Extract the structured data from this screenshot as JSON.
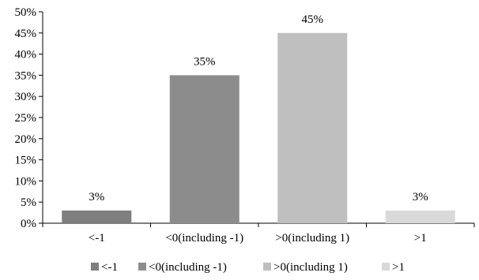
{
  "chart_data": {
    "type": "bar",
    "categories": [
      "<-1",
      "<0(including -1)",
      ">0(including 1)",
      ">1"
    ],
    "values": [
      3,
      35,
      45,
      3
    ],
    "value_labels": [
      "3%",
      "35%",
      "45%",
      "3%"
    ],
    "colors": [
      "#7f7f7f",
      "#8c8c8c",
      "#bfbfbf",
      "#d9d9d9"
    ],
    "ylim": [
      0,
      50
    ],
    "yticks": [
      0,
      5,
      10,
      15,
      20,
      25,
      30,
      35,
      40,
      45,
      50
    ],
    "ytick_labels": [
      "0%",
      "5%",
      "10%",
      "15%",
      "20%",
      "25%",
      "30%",
      "35%",
      "40%",
      "45%",
      "50%"
    ],
    "title": "",
    "xlabel": "",
    "ylabel": "",
    "grid": false,
    "legend": {
      "placement": "bottom",
      "entries": [
        "<-1",
        "<0(including -1)",
        ">0(including 1)",
        ">1"
      ]
    }
  }
}
